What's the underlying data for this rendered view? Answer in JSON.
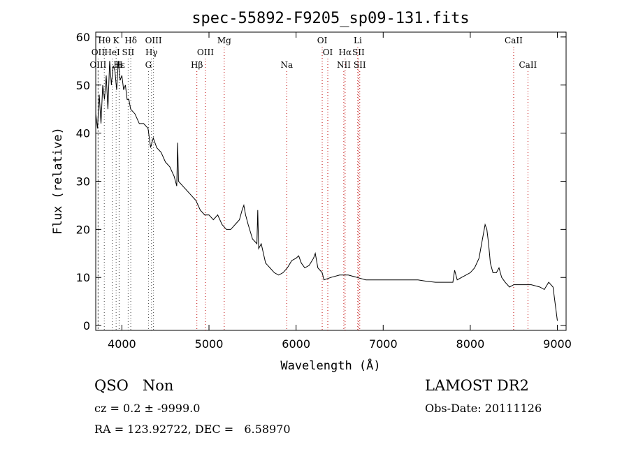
{
  "chart_data": {
    "type": "line",
    "title": "spec-55892-F9205_sp09-131.fits",
    "xlabel": "Wavelength (Å)",
    "ylabel": "Flux (relative)",
    "xlim": [
      3700,
      9100
    ],
    "ylim": [
      -1,
      61
    ],
    "xticks": [
      4000,
      5000,
      6000,
      7000,
      8000,
      9000
    ],
    "yticks": [
      0,
      10,
      20,
      30,
      40,
      50,
      60
    ],
    "series": [
      {
        "name": "spectrum",
        "x": [
          3700,
          3720,
          3740,
          3760,
          3780,
          3800,
          3820,
          3840,
          3860,
          3880,
          3900,
          3920,
          3940,
          3960,
          3980,
          4000,
          4020,
          4040,
          4060,
          4080,
          4100,
          4150,
          4200,
          4250,
          4300,
          4330,
          4360,
          4400,
          4450,
          4500,
          4550,
          4600,
          4630,
          4640,
          4650,
          4700,
          4750,
          4800,
          4850,
          4900,
          4950,
          5000,
          5050,
          5100,
          5150,
          5200,
          5250,
          5300,
          5350,
          5380,
          5400,
          5420,
          5450,
          5500,
          5550,
          5560,
          5570,
          5600,
          5650,
          5700,
          5750,
          5800,
          5850,
          5900,
          5950,
          6000,
          6030,
          6060,
          6100,
          6150,
          6200,
          6220,
          6250,
          6300,
          6320,
          6400,
          6500,
          6600,
          6700,
          6800,
          6900,
          7000,
          7100,
          7200,
          7300,
          7400,
          7500,
          7600,
          7700,
          7800,
          7820,
          7850,
          7900,
          7950,
          8000,
          8050,
          8100,
          8130,
          8150,
          8170,
          8190,
          8210,
          8230,
          8260,
          8300,
          8330,
          8360,
          8400,
          8450,
          8500,
          8600,
          8700,
          8800,
          8850,
          8900,
          8950,
          9000
        ],
        "values": [
          44,
          41,
          48,
          42,
          50,
          47,
          52,
          45,
          55,
          50,
          54,
          53,
          49,
          55,
          51,
          52,
          49,
          50,
          47,
          47,
          45,
          44,
          42,
          42,
          41,
          37,
          39,
          37,
          36,
          34,
          33,
          31,
          29,
          38,
          30,
          29,
          28,
          27,
          26,
          24,
          23,
          23,
          22,
          23,
          21,
          20,
          20,
          21,
          22,
          24,
          25,
          23,
          21,
          18,
          17,
          24,
          16,
          17,
          13,
          12,
          11,
          10.5,
          11,
          12,
          13.5,
          14,
          14.5,
          13,
          12,
          12.5,
          14,
          15,
          12,
          11,
          9.5,
          10,
          10.5,
          10.5,
          10,
          9.5,
          9.5,
          9.5,
          9.5,
          9.5,
          9.5,
          9.5,
          9.2,
          9,
          9,
          9,
          11.5,
          9.5,
          10,
          10.5,
          11,
          12,
          14,
          17,
          19,
          21,
          20,
          17,
          13,
          11,
          11,
          12,
          10,
          9,
          8,
          8.5,
          8.5,
          8.5,
          8,
          7.5,
          9,
          8,
          1
        ]
      }
    ],
    "lines": {
      "top": [
        {
          "label": "Hθ",
          "x": 3798
        },
        {
          "label": "K",
          "x": 3934
        },
        {
          "label": "Hδ",
          "x": 4102
        },
        {
          "label": "OIII",
          "x": 4363
        },
        {
          "label": "Mg",
          "x": 5175
        },
        {
          "label": "OI",
          "x": 6300
        },
        {
          "label": "Li",
          "x": 6708
        },
        {
          "label": "CaII",
          "x": 8498
        }
      ],
      "middle": [
        {
          "label": "OII",
          "x": 3727
        },
        {
          "label": "HeI",
          "x": 3889
        },
        {
          "label": "SII",
          "x": 4072
        },
        {
          "label": "Hγ",
          "x": 4340
        },
        {
          "label": "OIII",
          "x": 4959
        },
        {
          "label": "OI",
          "x": 6364
        },
        {
          "label": "Hα",
          "x": 6563
        },
        {
          "label": "SII",
          "x": 6716
        }
      ],
      "bottom": [
        {
          "label": "OIII",
          "x": 3727
        },
        {
          "label": "Hε",
          "x": 3970
        },
        {
          "label": "H",
          "x": 3968
        },
        {
          "label": "G",
          "x": 4305
        },
        {
          "label": "Hβ",
          "x": 4861
        },
        {
          "label": "Na",
          "x": 5893
        },
        {
          "label": "NII",
          "x": 6548
        },
        {
          "label": "SII",
          "x": 6731
        },
        {
          "label": "CaII",
          "x": 8662
        }
      ]
    },
    "info": {
      "cls": "QSO",
      "subcls": "Non",
      "cz": "cz = 0.2 ± -9999.0",
      "coords": "RA = 123.92722, DEC =   6.58970",
      "survey": "LAMOST DR2",
      "obsdate": "Obs-Date: 20111126"
    }
  }
}
